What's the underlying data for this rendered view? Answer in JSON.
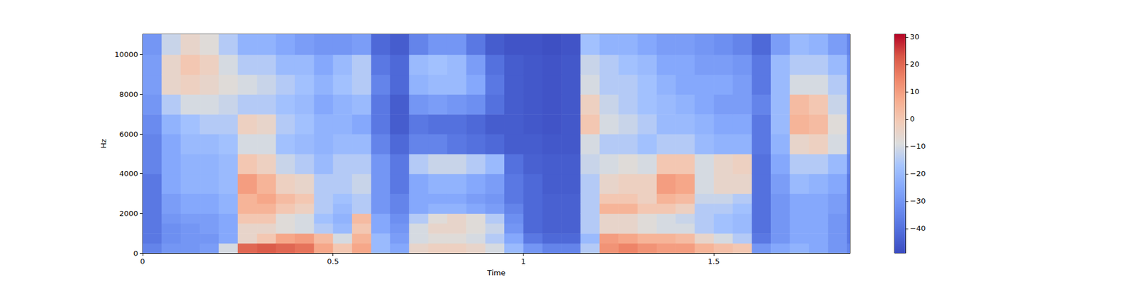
{
  "chart_data": {
    "type": "heatmap",
    "x_label": "Time",
    "y_label": "Hz",
    "xlim": [
      0,
      1.858
    ],
    "xticks": [
      0,
      0.5,
      1,
      1.5
    ],
    "ylim": [
      0,
      11025
    ],
    "yticks": [
      0,
      2000,
      4000,
      6000,
      8000,
      10000
    ],
    "grid": false,
    "time_edges": [
      0,
      0.05,
      0.1,
      0.15,
      0.2,
      0.25,
      0.3,
      0.35,
      0.4,
      0.45,
      0.5,
      0.55,
      0.6,
      0.65,
      0.7,
      0.75,
      0.8,
      0.85,
      0.9,
      0.95,
      1.0,
      1.05,
      1.1,
      1.15,
      1.2,
      1.25,
      1.3,
      1.35,
      1.4,
      1.45,
      1.5,
      1.55,
      1.6,
      1.65,
      1.7,
      1.75,
      1.8,
      1.85,
      1.858
    ],
    "freq_edges": [
      0,
      500,
      1000,
      1500,
      2000,
      2500,
      3000,
      4000,
      5000,
      6000,
      7000,
      8000,
      9000,
      10000,
      11025
    ],
    "values": [
      [
        -35,
        -38,
        -38,
        -38,
        -38,
        -38,
        -38,
        -35,
        -35,
        -33,
        -30,
        -28,
        -28,
        -30
      ],
      [
        -30,
        -32,
        -32,
        -30,
        -28,
        -28,
        -25,
        -25,
        -25,
        -22,
        -15,
        -5,
        -5,
        -12
      ],
      [
        -30,
        -30,
        -30,
        -28,
        -25,
        -25,
        -22,
        -22,
        -20,
        -18,
        -10,
        -3,
        0,
        -5
      ],
      [
        -28,
        -30,
        -28,
        -28,
        -25,
        -25,
        -22,
        -22,
        -20,
        -15,
        -10,
        -5,
        -3,
        -8
      ],
      [
        -10,
        -25,
        -25,
        -25,
        -22,
        -22,
        -20,
        -20,
        -18,
        -15,
        -12,
        -8,
        -10,
        -15
      ],
      [
        20,
        -5,
        -5,
        0,
        5,
        5,
        10,
        0,
        -10,
        -3,
        -15,
        -10,
        -15,
        -22
      ],
      [
        22,
        0,
        -5,
        0,
        5,
        8,
        5,
        -3,
        -10,
        -5,
        -15,
        -12,
        -15,
        -22
      ],
      [
        20,
        8,
        -8,
        -8,
        0,
        3,
        -3,
        -12,
        -18,
        -15,
        -18,
        -15,
        -20,
        -25
      ],
      [
        18,
        10,
        -10,
        -10,
        -3,
        0,
        -5,
        -15,
        -20,
        -18,
        -20,
        -18,
        -20,
        -28
      ],
      [
        8,
        3,
        -15,
        -18,
        -15,
        -15,
        -15,
        -20,
        -22,
        -22,
        -25,
        -22,
        -25,
        -30
      ],
      [
        0,
        -10,
        -20,
        -22,
        -20,
        -18,
        -15,
        -15,
        -20,
        -22,
        -22,
        -18,
        -20,
        -30
      ],
      [
        8,
        5,
        0,
        3,
        -15,
        -15,
        -12,
        -15,
        -20,
        -25,
        -20,
        -15,
        -15,
        -28
      ],
      [
        -20,
        -20,
        -25,
        -25,
        -30,
        -30,
        -30,
        -30,
        -35,
        -38,
        -38,
        -35,
        -38,
        -42
      ],
      [
        -25,
        -28,
        -30,
        -32,
        -35,
        -35,
        -38,
        -38,
        -42,
        -45,
        -45,
        -42,
        -42,
        -45
      ],
      [
        -5,
        -10,
        -10,
        -15,
        -25,
        -25,
        -25,
        -15,
        -35,
        -38,
        -30,
        -22,
        -20,
        -35
      ],
      [
        -3,
        -8,
        -5,
        -8,
        -22,
        -25,
        -22,
        -12,
        -35,
        -40,
        -28,
        -20,
        -18,
        -30
      ],
      [
        -3,
        -8,
        -5,
        -5,
        -22,
        -25,
        -22,
        -12,
        -38,
        -40,
        -30,
        -20,
        -20,
        -30
      ],
      [
        -5,
        -10,
        -8,
        -8,
        -25,
        -28,
        -25,
        -15,
        -40,
        -42,
        -32,
        -25,
        -28,
        -38
      ],
      [
        -10,
        -15,
        -12,
        -15,
        -28,
        -30,
        -28,
        -20,
        -42,
        -45,
        -40,
        -38,
        -40,
        -45
      ],
      [
        -20,
        -25,
        -30,
        -32,
        -35,
        -38,
        -38,
        -40,
        -45,
        -45,
        -45,
        -45,
        -45,
        -47
      ],
      [
        -30,
        -38,
        -42,
        -42,
        -42,
        -42,
        -42,
        -44,
        -45,
        -46,
        -46,
        -46,
        -46,
        -47
      ],
      [
        -35,
        -42,
        -44,
        -44,
        -44,
        -44,
        -45,
        -45,
        -46,
        -47,
        -47,
        -47,
        -47,
        -48
      ],
      [
        -35,
        -42,
        -44,
        -44,
        -44,
        -44,
        -45,
        -45,
        -46,
        -46,
        -46,
        -46,
        -46,
        -47
      ],
      [
        -15,
        -20,
        -15,
        -15,
        -15,
        -15,
        -15,
        -12,
        -10,
        0,
        -3,
        -10,
        -12,
        -18
      ],
      [
        12,
        10,
        -5,
        -5,
        5,
        0,
        -5,
        -10,
        -15,
        -10,
        -12,
        -15,
        -15,
        -22
      ],
      [
        15,
        8,
        -5,
        -5,
        5,
        0,
        -3,
        -8,
        -15,
        -12,
        -15,
        -15,
        -18,
        -22
      ],
      [
        12,
        5,
        -8,
        -8,
        0,
        -3,
        -3,
        -10,
        -18,
        -15,
        -18,
        -18,
        -20,
        -25
      ],
      [
        10,
        5,
        -10,
        -10,
        0,
        5,
        10,
        0,
        -15,
        -20,
        -20,
        -22,
        -25,
        -28
      ],
      [
        10,
        3,
        -10,
        -12,
        -3,
        3,
        8,
        0,
        -15,
        -20,
        -22,
        -25,
        -25,
        -28
      ],
      [
        5,
        -5,
        -15,
        -15,
        -15,
        -12,
        -10,
        -10,
        -20,
        -22,
        -25,
        -25,
        -28,
        -30
      ],
      [
        2,
        -10,
        -18,
        -18,
        -15,
        -12,
        -5,
        -5,
        -22,
        -25,
        -28,
        -25,
        -28,
        -32
      ],
      [
        0,
        -15,
        -20,
        -20,
        -18,
        -15,
        -5,
        -3,
        -22,
        -25,
        -28,
        -28,
        -30,
        -35
      ],
      [
        -30,
        -38,
        -40,
        -40,
        -40,
        -40,
        -40,
        -40,
        -38,
        -38,
        -35,
        -38,
        -38,
        -42
      ],
      [
        -25,
        -30,
        -30,
        -30,
        -30,
        -30,
        -28,
        -25,
        -22,
        -20,
        -20,
        -20,
        -20,
        -28
      ],
      [
        -22,
        -25,
        -25,
        -25,
        -25,
        -25,
        -20,
        -15,
        -5,
        5,
        3,
        -10,
        -15,
        -20
      ],
      [
        -25,
        -25,
        -25,
        -25,
        -25,
        -25,
        -22,
        -15,
        -3,
        3,
        0,
        -10,
        -15,
        -22
      ],
      [
        -30,
        -30,
        -30,
        -30,
        -28,
        -28,
        -25,
        -20,
        -10,
        -8,
        -12,
        -15,
        -20,
        -28
      ],
      [
        -35,
        -38,
        -38,
        -38,
        -38,
        -38,
        -38,
        -35,
        -32,
        -32,
        -32,
        -32,
        -32,
        -35
      ]
    ],
    "colorbar": {
      "range": [
        -49,
        31
      ],
      "ticks": [
        {
          "value": -40,
          "label": "−40"
        },
        {
          "value": -30,
          "label": "−30"
        },
        {
          "value": -20,
          "label": "−20"
        },
        {
          "value": -10,
          "label": "−10"
        },
        0,
        10,
        20,
        30
      ]
    }
  }
}
